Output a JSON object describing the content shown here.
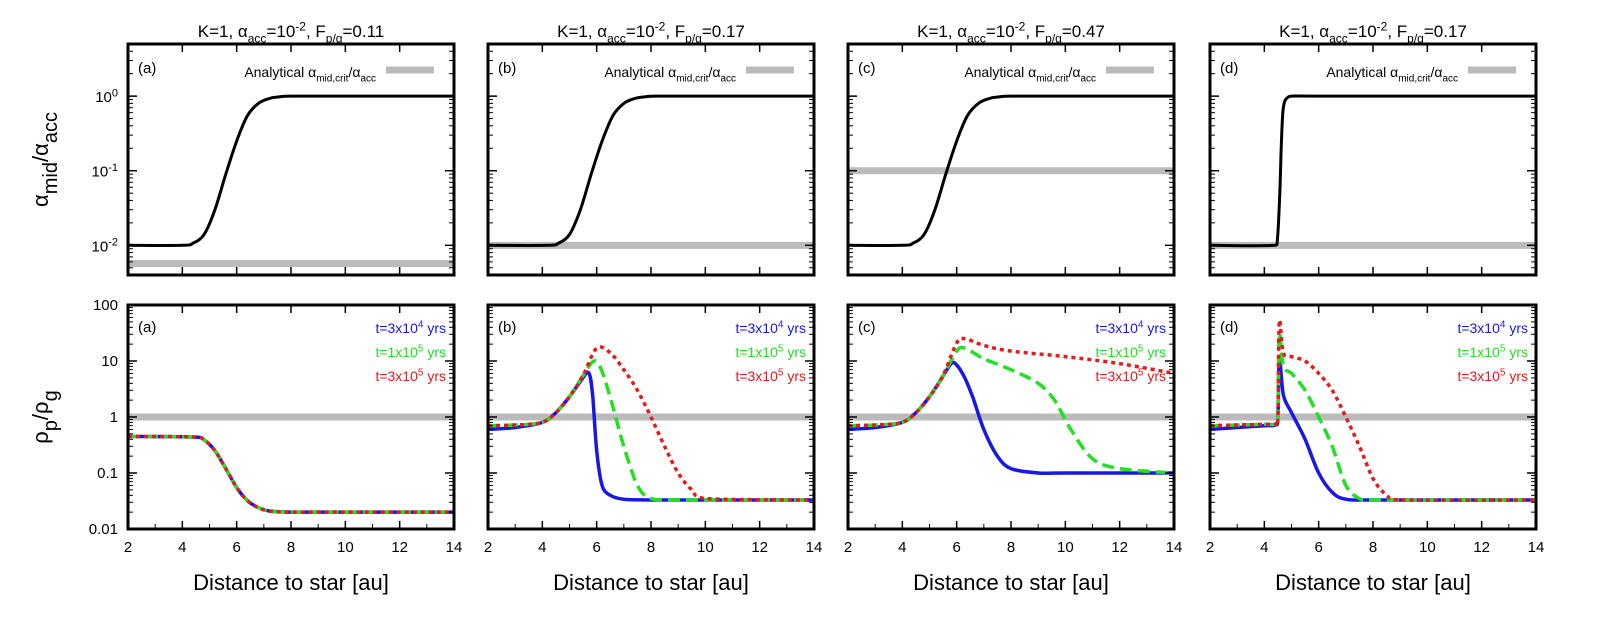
{
  "colors": {
    "analytical": "#bbbbbb",
    "alpha_curve": "#000000",
    "t1": "#1818e6",
    "t2": "#22e022",
    "t3": "#e61a1a"
  },
  "common": {
    "xlabel": "Distance to star [au]",
    "xlim": [
      2,
      14
    ],
    "xticks": [
      "2",
      "4",
      "6",
      "8",
      "10",
      "12",
      "14"
    ],
    "top_ylabel": "α_mid/α_acc",
    "top_yticks": [
      "10-2",
      "10-1",
      "100"
    ],
    "bottom_ylabel": "ρp/ρg",
    "bottom_yticks": [
      "0.01",
      "0.1",
      "1",
      "10",
      "100"
    ],
    "top_legend": "Analytical αmid,crit/αacc",
    "bottom_legend": [
      "t=3x104 yrs",
      "t=1x105 yrs",
      "t=3x105 yrs"
    ]
  },
  "chart_data": [
    {
      "type": "line",
      "panel": "(a)",
      "title": "K=1, αacc=10-2, Fp/g=0.11",
      "top": {
        "yscale": "log",
        "ylim": [
          0.004,
          5
        ],
        "analytical": 0.0057,
        "alpha_series": {
          "x": [
            2,
            4,
            4.4,
            4.8,
            5.2,
            5.6,
            6.0,
            6.4,
            6.8,
            7.2,
            7.6,
            8,
            10,
            14
          ],
          "y": [
            0.01,
            0.01,
            0.0107,
            0.014,
            0.03,
            0.09,
            0.25,
            0.55,
            0.8,
            0.93,
            0.98,
            1,
            1,
            1
          ]
        }
      },
      "bottom": {
        "yscale": "log",
        "ylim": [
          0.01,
          100
        ],
        "analytical": 1,
        "series": [
          {
            "name": "t=3x104 yrs",
            "x": [
              2,
              4.4,
              4.8,
              5.2,
              5.6,
              6.0,
              6.4,
              6.8,
              7.2,
              8,
              10,
              14
            ],
            "y": [
              0.45,
              0.44,
              0.39,
              0.25,
              0.12,
              0.055,
              0.032,
              0.024,
              0.021,
              0.02,
              0.02,
              0.02
            ]
          },
          {
            "name": "t=1x105 yrs",
            "x": [
              2,
              4.4,
              4.8,
              5.2,
              5.6,
              6.0,
              6.4,
              6.8,
              7.2,
              8,
              10,
              14
            ],
            "y": [
              0.45,
              0.44,
              0.39,
              0.25,
              0.12,
              0.055,
              0.032,
              0.024,
              0.021,
              0.02,
              0.02,
              0.02
            ]
          },
          {
            "name": "t=3x105 yrs",
            "x": [
              2,
              4.4,
              4.8,
              5.2,
              5.6,
              6.0,
              6.4,
              6.8,
              7.2,
              8,
              10,
              14
            ],
            "y": [
              0.45,
              0.44,
              0.39,
              0.25,
              0.12,
              0.055,
              0.032,
              0.024,
              0.021,
              0.02,
              0.02,
              0.02
            ]
          }
        ]
      }
    },
    {
      "type": "line",
      "panel": "(b)",
      "title": "K=1, αacc=10-2, Fp/g=0.17",
      "top": {
        "yscale": "log",
        "ylim": [
          0.004,
          5
        ],
        "analytical": 0.01,
        "alpha_series": {
          "x": [
            2,
            4.2,
            4.6,
            5.0,
            5.4,
            5.8,
            6.2,
            6.6,
            7.0,
            7.4,
            7.8,
            8.2,
            10,
            14
          ],
          "y": [
            0.01,
            0.01,
            0.0107,
            0.014,
            0.03,
            0.09,
            0.25,
            0.55,
            0.8,
            0.93,
            0.98,
            1,
            1,
            1
          ]
        }
      },
      "bottom": {
        "yscale": "log",
        "ylim": [
          0.01,
          100
        ],
        "analytical": 1,
        "series": [
          {
            "name": "t=3x104 yrs",
            "x": [
              2,
              3,
              4,
              4.5,
              5,
              5.4,
              5.7,
              5.85,
              6.0,
              6.2,
              6.5,
              7,
              8,
              10,
              14
            ],
            "y": [
              0.6,
              0.65,
              0.8,
              1.2,
              2.3,
              4.3,
              6.2,
              2.5,
              0.25,
              0.06,
              0.04,
              0.034,
              0.033,
              0.033,
              0.033
            ]
          },
          {
            "name": "t=1x105 yrs",
            "x": [
              2,
              3,
              4,
              4.5,
              5,
              5.5,
              5.9,
              6.2,
              6.6,
              7.0,
              7.5,
              8,
              9,
              10,
              14
            ],
            "y": [
              0.7,
              0.72,
              0.8,
              1.2,
              2.3,
              5.5,
              10,
              6.5,
              1.5,
              0.3,
              0.06,
              0.035,
              0.033,
              0.033,
              0.033
            ]
          },
          {
            "name": "t=3x105 yrs",
            "x": [
              2,
              3,
              4,
              4.5,
              5,
              5.5,
              6.0,
              6.5,
              7.0,
              7.5,
              8.0,
              8.5,
              9,
              9.5,
              10,
              14
            ],
            "y": [
              0.7,
              0.72,
              0.8,
              1.2,
              2.3,
              5.5,
              17,
              14,
              7,
              3,
              1,
              0.3,
              0.1,
              0.05,
              0.035,
              0.033
            ]
          }
        ]
      }
    },
    {
      "type": "line",
      "panel": "(c)",
      "title": "K=1, αacc=10-2, Fp/g=0.47",
      "top": {
        "yscale": "log",
        "ylim": [
          0.004,
          5
        ],
        "analytical": 0.1,
        "alpha_series": {
          "x": [
            2,
            4,
            4.4,
            4.8,
            5.2,
            5.6,
            6.0,
            6.4,
            6.8,
            7.2,
            7.6,
            8,
            10,
            14
          ],
          "y": [
            0.01,
            0.01,
            0.0107,
            0.014,
            0.03,
            0.09,
            0.25,
            0.55,
            0.8,
            0.93,
            0.98,
            1,
            1,
            1
          ]
        }
      },
      "bottom": {
        "yscale": "log",
        "ylim": [
          0.01,
          100
        ],
        "analytical": 1,
        "series": [
          {
            "name": "t=3x104 yrs",
            "x": [
              2,
              3,
              4,
              4.5,
              5,
              5.4,
              5.8,
              6.0,
              6.3,
              6.6,
              7.0,
              7.5,
              8,
              9,
              10,
              14
            ],
            "y": [
              0.6,
              0.65,
              0.8,
              1.2,
              2.3,
              4.5,
              9,
              8.5,
              5,
              2.2,
              0.6,
              0.2,
              0.12,
              0.1,
              0.1,
              0.1
            ]
          },
          {
            "name": "t=1x105 yrs",
            "x": [
              2,
              3,
              4,
              4.5,
              5,
              5.5,
              6.0,
              6.3,
              7,
              8,
              9,
              9.6,
              10.2,
              11,
              12,
              14
            ],
            "y": [
              0.7,
              0.72,
              0.8,
              1.2,
              2.3,
              5.5,
              15,
              17,
              11,
              7,
              4,
              2,
              0.6,
              0.18,
              0.12,
              0.1
            ]
          },
          {
            "name": "t=3x105 yrs",
            "x": [
              2,
              3,
              4,
              4.5,
              5,
              5.5,
              6.0,
              6.3,
              7,
              8,
              10,
              12,
              14
            ],
            "y": [
              0.7,
              0.72,
              0.8,
              1.2,
              2.3,
              5.5,
              21,
              25,
              19,
              15,
              12,
              9,
              6
            ]
          }
        ]
      }
    },
    {
      "type": "line",
      "panel": "(d)",
      "title": "K=1, αacc=10-2, Fp/g=0.17",
      "top": {
        "yscale": "log",
        "ylim": [
          0.004,
          5
        ],
        "analytical": 0.01,
        "alpha_series": {
          "x": [
            2,
            4.4,
            4.48,
            4.56,
            4.62,
            4.68,
            4.75,
            4.85,
            5,
            6,
            14
          ],
          "y": [
            0.01,
            0.01,
            0.012,
            0.04,
            0.2,
            0.6,
            0.85,
            0.95,
            1,
            1,
            1
          ]
        }
      },
      "bottom": {
        "yscale": "log",
        "ylim": [
          0.01,
          100
        ],
        "analytical": 1,
        "series": [
          {
            "name": "t=3x104 yrs",
            "x": [
              2,
              3,
              4,
              4.4,
              4.5,
              4.55,
              4.7,
              5,
              5.5,
              6,
              6.5,
              7,
              8,
              14
            ],
            "y": [
              0.6,
              0.65,
              0.7,
              0.72,
              1.0,
              12,
              2.5,
              1.2,
              0.4,
              0.1,
              0.045,
              0.034,
              0.033,
              0.033
            ]
          },
          {
            "name": "t=1x105 yrs",
            "x": [
              2,
              3,
              4,
              4.4,
              4.5,
              4.55,
              4.7,
              5,
              5.5,
              6,
              6.5,
              7,
              7.5,
              8,
              14
            ],
            "y": [
              0.7,
              0.72,
              0.74,
              0.75,
              1.0,
              30,
              8,
              6,
              3,
              1,
              0.3,
              0.06,
              0.035,
              0.033,
              0.033
            ]
          },
          {
            "name": "t=3x105 yrs",
            "x": [
              2,
              3,
              4,
              4.4,
              4.5,
              4.55,
              4.7,
              5,
              5.5,
              6,
              6.5,
              7,
              7.5,
              8,
              8.5,
              9,
              14
            ],
            "y": [
              0.7,
              0.72,
              0.74,
              0.75,
              1.0,
              50,
              14,
              12,
              10,
              6,
              3,
              1,
              0.3,
              0.08,
              0.04,
              0.033,
              0.033
            ]
          }
        ]
      }
    }
  ]
}
